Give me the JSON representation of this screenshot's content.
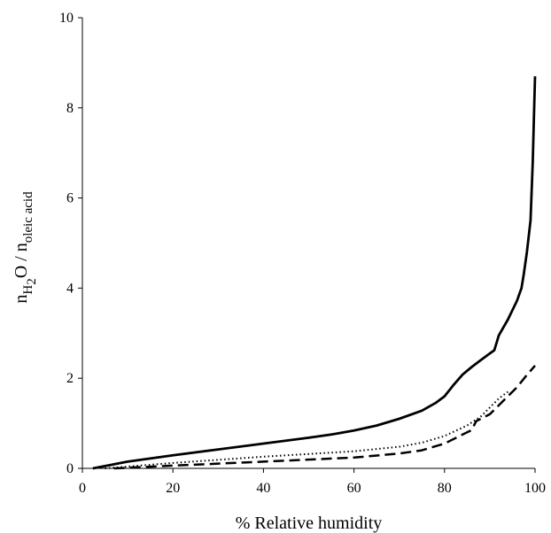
{
  "chart_data": {
    "type": "line",
    "title": "",
    "xlabel": "% Relative humidity",
    "ylabel": {
      "prefix": "n",
      "sub1": "H",
      "sub2": "2",
      "mid": "O / n",
      "sub3": "oleic acid"
    },
    "xlim": [
      0,
      100
    ],
    "ylim": [
      0,
      10
    ],
    "x_ticks": [
      0,
      20,
      40,
      60,
      80,
      100
    ],
    "y_ticks": [
      0,
      2,
      4,
      6,
      8,
      10
    ],
    "grid": false,
    "legend": "none",
    "series": [
      {
        "style": "solid",
        "color": "#000000",
        "x": [
          2.3,
          10,
          20,
          30,
          40,
          50,
          55,
          60,
          65,
          70,
          75,
          78,
          80,
          82,
          84,
          86,
          88,
          90,
          91,
          92,
          94,
          96,
          97,
          97.5,
          98.2,
          99,
          99.5,
          99.8,
          100
        ],
        "y": [
          0.0,
          0.15,
          0.29,
          0.42,
          0.55,
          0.68,
          0.75,
          0.84,
          0.95,
          1.1,
          1.28,
          1.45,
          1.6,
          1.85,
          2.08,
          2.25,
          2.4,
          2.55,
          2.62,
          2.95,
          3.3,
          3.72,
          4.0,
          4.3,
          4.8,
          5.5,
          6.8,
          8.0,
          8.7
        ]
      },
      {
        "style": "dotted",
        "color": "#000000",
        "x": [
          5,
          20,
          40,
          60,
          70,
          75,
          80,
          85,
          88,
          90,
          92,
          94
        ],
        "y": [
          0.0,
          0.12,
          0.26,
          0.38,
          0.48,
          0.57,
          0.72,
          0.95,
          1.15,
          1.35,
          1.55,
          1.7
        ]
      },
      {
        "style": "dashed",
        "color": "#000000",
        "x": [
          7,
          20,
          40,
          60,
          70,
          75,
          80,
          84,
          86,
          87,
          90,
          92,
          94,
          96,
          98,
          100
        ],
        "y": [
          0.0,
          0.06,
          0.15,
          0.24,
          0.33,
          0.4,
          0.55,
          0.75,
          0.85,
          1.05,
          1.2,
          1.4,
          1.6,
          1.8,
          2.05,
          2.28
        ]
      }
    ]
  }
}
